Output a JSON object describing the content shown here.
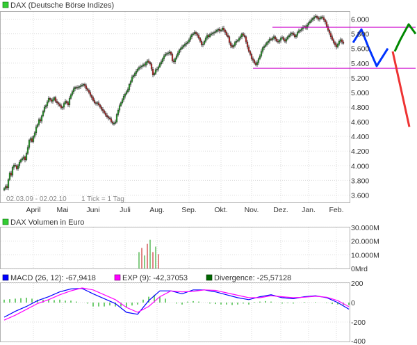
{
  "chart_data": [
    {
      "type": "candlestick",
      "title": "DAX (Deutsche Börse Indizes)",
      "legend_color": "#33cc33",
      "date_range_note": "02.03.09 - 02.02.10",
      "tick_note": "1 Tick = 1 Tag",
      "ylim": [
        3500,
        6100
      ],
      "y_ticks": [
        "3.600",
        "3.800",
        "4.000",
        "4.200",
        "4.400",
        "4.600",
        "4.800",
        "5.000",
        "5.200",
        "5.400",
        "5.600",
        "5.800",
        "6.000"
      ],
      "y_tick_values": [
        3600,
        3800,
        4000,
        4200,
        4400,
        4600,
        4800,
        5000,
        5200,
        5400,
        5600,
        5800,
        6000
      ],
      "x_labels": [
        "April",
        "Mai",
        "Juni",
        "Juli",
        "Aug.",
        "Sep.",
        "Okt.",
        "Nov.",
        "Dez.",
        "Jan.",
        "Feb."
      ],
      "x_label_days": [
        21,
        42,
        64,
        87,
        110,
        133,
        156,
        178,
        199,
        219,
        239
      ],
      "close_series": [
        3690,
        3720,
        3700,
        3810,
        3900,
        3870,
        3980,
        4010,
        4000,
        3960,
        4000,
        4050,
        4080,
        4100,
        4120,
        4080,
        4170,
        4250,
        4350,
        4370,
        4330,
        4400,
        4450,
        4530,
        4560,
        4630,
        4610,
        4680,
        4740,
        4800,
        4820,
        4870,
        4920,
        4900,
        4880,
        4900,
        4930,
        4880,
        4860,
        4840,
        4820,
        4790,
        4800,
        4850,
        4880,
        4860,
        4830,
        4920,
        4970,
        5010,
        5050,
        5070,
        5060,
        5070,
        5080,
        5090,
        5100,
        5110,
        5090,
        5050,
        5030,
        5000,
        4960,
        4930,
        4890,
        4860,
        4850,
        4860,
        4830,
        4800,
        4770,
        4750,
        4720,
        4690,
        4670,
        4650,
        4640,
        4600,
        4580,
        4580,
        4600,
        4700,
        4760,
        4820,
        4860,
        4900,
        4950,
        4980,
        5010,
        5040,
        5110,
        5150,
        5210,
        5230,
        5260,
        5290,
        5320,
        5340,
        5350,
        5360,
        5380,
        5370,
        5410,
        5430,
        5410,
        5390,
        5320,
        5240,
        5260,
        5310,
        5320,
        5350,
        5390,
        5420,
        5460,
        5500,
        5520,
        5530,
        5540,
        5550,
        5520,
        5430,
        5420,
        5460,
        5500,
        5540,
        5580,
        5600,
        5620,
        5640,
        5660,
        5670,
        5690,
        5720,
        5760,
        5790,
        5800,
        5820,
        5800,
        5780,
        5740,
        5700,
        5650,
        5660,
        5700,
        5740,
        5780,
        5760,
        5790,
        5800,
        5810,
        5820,
        5830,
        5850,
        5860,
        5840,
        5850,
        5880,
        5850,
        5820,
        5780,
        5760,
        5680,
        5640,
        5620,
        5640,
        5680,
        5700,
        5710,
        5740,
        5760,
        5800,
        5780,
        5760,
        5690,
        5620,
        5560,
        5520,
        5460,
        5440,
        5400,
        5380,
        5410,
        5460,
        5500,
        5560,
        5610,
        5630,
        5650,
        5680,
        5700,
        5730,
        5720,
        5740,
        5760,
        5730,
        5700,
        5690,
        5710,
        5740,
        5750,
        5720,
        5700,
        5730,
        5760,
        5780,
        5800,
        5810,
        5790,
        5760,
        5780,
        5820,
        5840,
        5850,
        5870,
        5890,
        5900,
        5880,
        5920,
        5950,
        5970,
        5990,
        6010,
        6030,
        6040,
        6020,
        6000,
        6010,
        6030,
        6020,
        5990,
        5960,
        5900,
        5850,
        5810,
        5760,
        5720,
        5680,
        5650,
        5620,
        5660,
        5700,
        5720,
        5690,
        5670
      ],
      "resistance_level": 5890,
      "support_level": 5330,
      "forecast_blue": [
        5680,
        5860,
        5620,
        5360,
        5600
      ],
      "forecast_green": [
        5560,
        5720,
        5930,
        5800
      ],
      "forecast_red": [
        5560,
        4530
      ]
    },
    {
      "type": "bar",
      "title": "DAX Volumen in Euro",
      "legend_color": "#33cc33",
      "ylim": [
        0,
        30000
      ],
      "y_ticks": [
        "30.000M",
        "20.000M",
        "10.000M",
        "0Mrd"
      ],
      "y_tick_values": [
        30000,
        20000,
        10000,
        0
      ],
      "bar_days": [
        97,
        99,
        101,
        103,
        105,
        107,
        109,
        111
      ],
      "values": [
        12000,
        15000,
        9500,
        18000,
        21000,
        12000,
        16000,
        10500
      ]
    },
    {
      "type": "line",
      "title": "MACD",
      "ylim": [
        -400,
        200
      ],
      "y_ticks": [
        "200",
        "0",
        "-200",
        "-400"
      ],
      "y_tick_values": [
        200,
        0,
        -200,
        -400
      ],
      "series": [
        {
          "name": "MACD (26, 12): -67,9418",
          "color": "#0000ff",
          "days": [
            0,
            8,
            16,
            24,
            32,
            40,
            48,
            56,
            64,
            72,
            80,
            88,
            96,
            104,
            112,
            120,
            128,
            136,
            144,
            152,
            160,
            168,
            176,
            184,
            192,
            200,
            208,
            216,
            224,
            232,
            240,
            248
          ],
          "values": [
            -150,
            -90,
            -40,
            20,
            60,
            110,
            140,
            145,
            90,
            40,
            -10,
            -100,
            -120,
            20,
            120,
            120,
            90,
            130,
            130,
            110,
            80,
            50,
            30,
            60,
            80,
            50,
            40,
            60,
            70,
            50,
            0,
            -68
          ]
        },
        {
          "name": "EXP (9): -42,37053",
          "color": "#ff00ff",
          "days": [
            0,
            8,
            16,
            24,
            32,
            40,
            48,
            56,
            64,
            72,
            80,
            88,
            96,
            104,
            112,
            120,
            128,
            136,
            144,
            152,
            160,
            168,
            176,
            184,
            192,
            200,
            208,
            216,
            224,
            232,
            240,
            248
          ],
          "values": [
            -180,
            -130,
            -70,
            -10,
            30,
            80,
            120,
            150,
            130,
            80,
            30,
            -50,
            -100,
            -40,
            60,
            120,
            110,
            115,
            130,
            125,
            100,
            75,
            50,
            50,
            70,
            60,
            50,
            55,
            65,
            55,
            20,
            -42
          ]
        },
        {
          "name": "Divergence: -25,57128",
          "color": "#006600"
        }
      ],
      "divergence_days": [
        0,
        4,
        8,
        12,
        16,
        20,
        24,
        28,
        32,
        36,
        40,
        44,
        48,
        52,
        56,
        60,
        64,
        68,
        72,
        76,
        80,
        84,
        88,
        92,
        96,
        100,
        104,
        108,
        112,
        116,
        120,
        124,
        128,
        132,
        136,
        140,
        144,
        148,
        152,
        156,
        160,
        164,
        168,
        172,
        176,
        180,
        184,
        188,
        192,
        196,
        200,
        204,
        208,
        212,
        216,
        220,
        224,
        228,
        232,
        236,
        240,
        244,
        248
      ],
      "divergence_values": [
        30,
        35,
        40,
        45,
        50,
        40,
        30,
        30,
        30,
        25,
        30,
        20,
        20,
        10,
        0,
        -10,
        -40,
        -40,
        -40,
        -30,
        -40,
        -40,
        -50,
        -30,
        -20,
        30,
        60,
        80,
        60,
        40,
        0,
        -10,
        -20,
        10,
        15,
        10,
        0,
        -10,
        -15,
        -20,
        -20,
        -25,
        -20,
        -10,
        -20,
        5,
        10,
        15,
        10,
        0,
        -10,
        -5,
        -10,
        0,
        5,
        0,
        5,
        0,
        -5,
        -15,
        -20,
        -25,
        -26
      ]
    }
  ]
}
